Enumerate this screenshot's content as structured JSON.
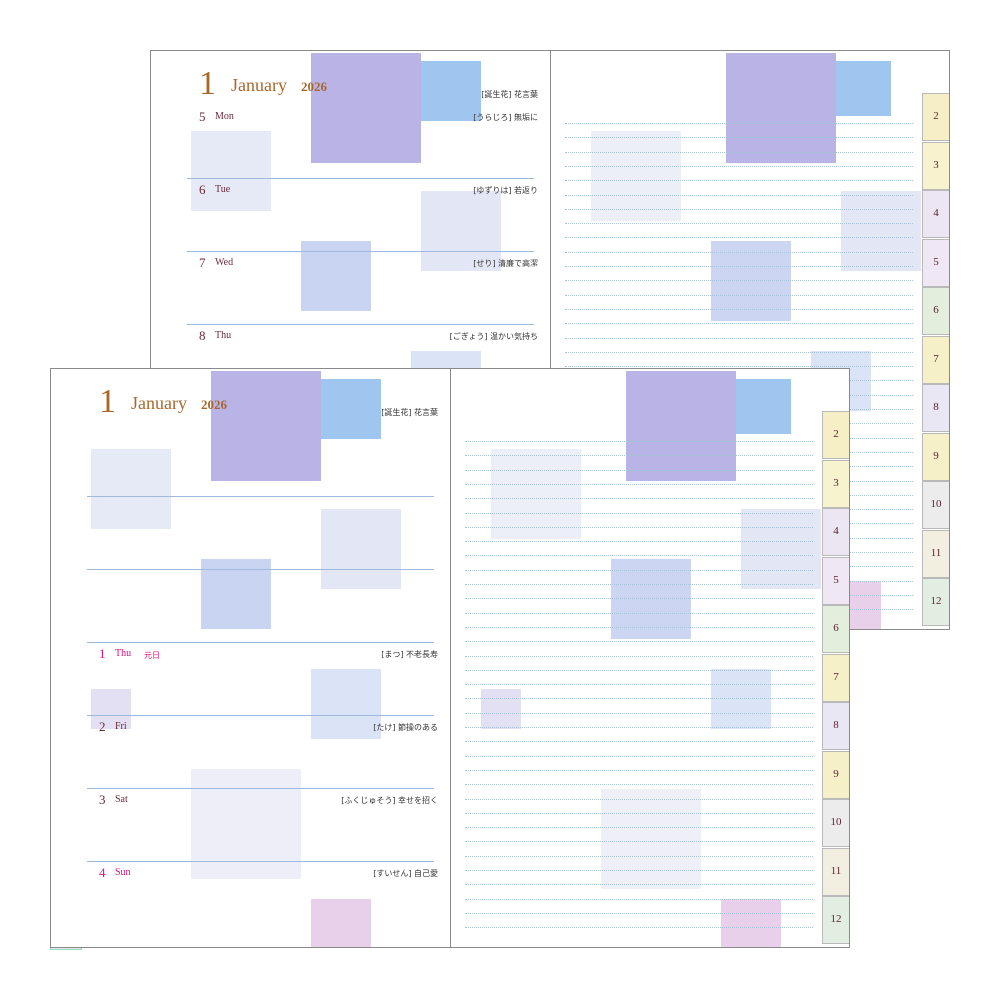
{
  "back_spread": {
    "month_number": "1",
    "month": "January",
    "year": "2026",
    "flower_header": "[誕生花] 花言葉",
    "days": [
      {
        "date": 5,
        "weekday": "Mon",
        "flower": "[うらじろ] 無垢に",
        "color": "#6b2b3a"
      },
      {
        "date": 6,
        "weekday": "Tue",
        "flower": "[ゆずりは] 若返り",
        "color": "#6b2b3a"
      },
      {
        "date": 7,
        "weekday": "Wed",
        "flower": "[せり] 清廉で高潔",
        "color": "#6b2b3a"
      },
      {
        "date": 8,
        "weekday": "Thu",
        "flower": "[ごぎょう] 温かい気持ち",
        "color": "#6b2b3a"
      }
    ],
    "tabs": [
      2,
      3,
      4,
      5,
      6,
      7,
      8,
      9,
      10,
      11,
      12
    ]
  },
  "front_spread": {
    "month_number": "1",
    "month": "January",
    "year": "2026",
    "flower_header": "[誕生花] 花言葉",
    "days": [
      {
        "date": 1,
        "weekday": "Thu",
        "holiday": "元日",
        "flower": "[まつ] 不老長寿",
        "color": "#d6157a"
      },
      {
        "date": 2,
        "weekday": "Fri",
        "flower": "[たけ] 節操のある",
        "color": "#6b2b3a"
      },
      {
        "date": 3,
        "weekday": "Sat",
        "flower": "[ふくじゅそう] 幸せを招く",
        "color": "#6b2b3a"
      },
      {
        "date": 4,
        "weekday": "Sun",
        "flower": "[すいせん] 自己愛",
        "color": "#d6157a"
      }
    ],
    "tabs": [
      2,
      3,
      4,
      5,
      6,
      7,
      8,
      9,
      10,
      11,
      12
    ]
  }
}
